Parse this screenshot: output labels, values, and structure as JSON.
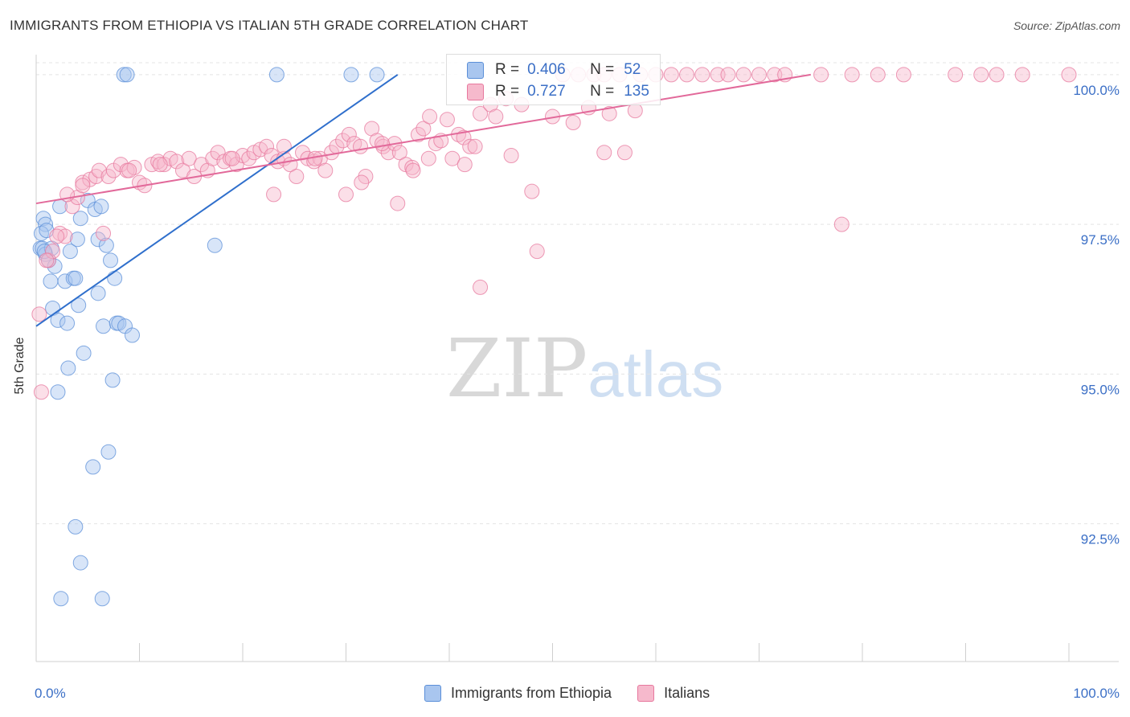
{
  "header": {
    "title": "IMMIGRANTS FROM ETHIOPIA VS ITALIAN 5TH GRADE CORRELATION CHART",
    "source": "Source: ZipAtlas.com"
  },
  "watermark": {
    "zip": "ZIP",
    "atlas": "atlas"
  },
  "legend": {
    "r_label": "R =",
    "n_label": "N =",
    "series": [
      {
        "name": "Immigrants from Ethiopia",
        "r": "0.406",
        "n": "52",
        "fill": "#a9c6ef",
        "stroke": "#5b8fd8"
      },
      {
        "name": "Italians",
        "r": "0.727",
        "n": "135",
        "fill": "#f6b9cc",
        "stroke": "#e7789e"
      }
    ]
  },
  "chart_data": {
    "type": "scatter",
    "title": "IMMIGRANTS FROM ETHIOPIA VS ITALIAN 5TH GRADE CORRELATION CHART",
    "xlabel": "",
    "ylabel": "5th Grade",
    "xlim": [
      0,
      100
    ],
    "ylim": [
      90.2,
      100.2
    ],
    "x_tick_labels": [
      "0.0%",
      "100.0%"
    ],
    "y_ticks": [
      92.5,
      95.0,
      97.5,
      100.0
    ],
    "y_tick_labels": [
      "92.5%",
      "95.0%",
      "97.5%",
      "100.0%"
    ],
    "grid": true,
    "legend_position": "top-center and bottom",
    "series": [
      {
        "name": "Immigrants from Ethiopia",
        "color": "#5b8fd8",
        "fill": "#a9c6ef",
        "trend": {
          "x": [
            0,
            35
          ],
          "y": [
            95.8,
            100.0
          ]
        },
        "points": [
          [
            8.5,
            100.0
          ],
          [
            8.8,
            100.0
          ],
          [
            23.3,
            100.0
          ],
          [
            30.5,
            100.0
          ],
          [
            33.0,
            100.0
          ],
          [
            0.7,
            97.6
          ],
          [
            0.9,
            97.5
          ],
          [
            0.5,
            97.35
          ],
          [
            0.4,
            97.1
          ],
          [
            0.6,
            97.1
          ],
          [
            0.9,
            97.0
          ],
          [
            1.2,
            96.9
          ],
          [
            1.5,
            97.1
          ],
          [
            1.8,
            96.8
          ],
          [
            1.4,
            96.55
          ],
          [
            2.3,
            97.8
          ],
          [
            2.8,
            96.55
          ],
          [
            3.3,
            97.05
          ],
          [
            3.6,
            96.6
          ],
          [
            4.0,
            97.25
          ],
          [
            4.3,
            97.6
          ],
          [
            5.0,
            97.9
          ],
          [
            5.7,
            97.75
          ],
          [
            6.3,
            97.8
          ],
          [
            6.0,
            97.25
          ],
          [
            6.8,
            97.15
          ],
          [
            7.2,
            96.9
          ],
          [
            7.6,
            96.6
          ],
          [
            3.8,
            96.6
          ],
          [
            6.0,
            96.35
          ],
          [
            4.1,
            96.15
          ],
          [
            1.6,
            96.1
          ],
          [
            2.1,
            95.9
          ],
          [
            3.0,
            95.85
          ],
          [
            6.5,
            95.8
          ],
          [
            7.8,
            95.85
          ],
          [
            8.0,
            95.85
          ],
          [
            8.6,
            95.8
          ],
          [
            9.3,
            95.65
          ],
          [
            4.6,
            95.35
          ],
          [
            3.1,
            95.1
          ],
          [
            7.4,
            94.9
          ],
          [
            2.1,
            94.7
          ],
          [
            7.0,
            93.7
          ],
          [
            5.5,
            93.45
          ],
          [
            3.8,
            92.45
          ],
          [
            4.3,
            91.85
          ],
          [
            2.4,
            91.25
          ],
          [
            6.4,
            91.25
          ],
          [
            17.3,
            97.15
          ],
          [
            1.0,
            97.4
          ],
          [
            0.8,
            97.05
          ]
        ]
      },
      {
        "name": "Italians",
        "color": "#e7789e",
        "fill": "#f6b9cc",
        "trend": {
          "x": [
            0,
            75
          ],
          "y": [
            97.85,
            100.0
          ]
        },
        "points": [
          [
            0.3,
            96.0
          ],
          [
            0.5,
            94.7
          ],
          [
            1.2,
            96.9
          ],
          [
            1.6,
            97.05
          ],
          [
            2.3,
            97.35
          ],
          [
            2.8,
            97.3
          ],
          [
            3.5,
            97.8
          ],
          [
            4.0,
            97.95
          ],
          [
            4.5,
            98.2
          ],
          [
            5.2,
            98.25
          ],
          [
            5.8,
            98.3
          ],
          [
            6.1,
            98.4
          ],
          [
            7.0,
            98.3
          ],
          [
            7.5,
            98.4
          ],
          [
            8.2,
            98.5
          ],
          [
            8.8,
            98.4
          ],
          [
            9.5,
            98.45
          ],
          [
            10.0,
            98.2
          ],
          [
            10.5,
            98.15
          ],
          [
            11.2,
            98.5
          ],
          [
            11.8,
            98.55
          ],
          [
            12.4,
            98.5
          ],
          [
            13.0,
            98.6
          ],
          [
            13.6,
            98.55
          ],
          [
            14.2,
            98.4
          ],
          [
            14.8,
            98.6
          ],
          [
            15.3,
            98.3
          ],
          [
            16.0,
            98.5
          ],
          [
            16.6,
            98.4
          ],
          [
            17.1,
            98.6
          ],
          [
            17.6,
            98.7
          ],
          [
            18.2,
            98.55
          ],
          [
            18.8,
            98.6
          ],
          [
            19.4,
            98.5
          ],
          [
            20.0,
            98.65
          ],
          [
            20.6,
            98.6
          ],
          [
            21.1,
            98.7
          ],
          [
            21.7,
            98.75
          ],
          [
            22.3,
            98.8
          ],
          [
            22.8,
            98.65
          ],
          [
            23.4,
            98.55
          ],
          [
            24.0,
            98.6
          ],
          [
            24.6,
            98.5
          ],
          [
            25.2,
            98.3
          ],
          [
            25.8,
            98.7
          ],
          [
            26.3,
            98.6
          ],
          [
            26.9,
            98.55
          ],
          [
            27.5,
            98.6
          ],
          [
            28.0,
            98.4
          ],
          [
            28.6,
            98.7
          ],
          [
            29.1,
            98.8
          ],
          [
            29.7,
            98.9
          ],
          [
            30.3,
            99.0
          ],
          [
            30.8,
            98.85
          ],
          [
            31.4,
            98.8
          ],
          [
            31.9,
            98.3
          ],
          [
            32.5,
            99.1
          ],
          [
            33.0,
            98.9
          ],
          [
            33.6,
            98.8
          ],
          [
            34.1,
            98.7
          ],
          [
            34.7,
            98.85
          ],
          [
            35.2,
            98.7
          ],
          [
            35.8,
            98.5
          ],
          [
            36.4,
            98.45
          ],
          [
            37.0,
            99.0
          ],
          [
            37.5,
            99.1
          ],
          [
            38.1,
            99.3
          ],
          [
            38.7,
            98.85
          ],
          [
            39.2,
            98.9
          ],
          [
            39.8,
            99.25
          ],
          [
            40.3,
            98.6
          ],
          [
            40.9,
            99.0
          ],
          [
            41.4,
            98.95
          ],
          [
            42.0,
            98.8
          ],
          [
            43.0,
            99.35
          ],
          [
            44.0,
            99.5
          ],
          [
            45.5,
            99.6
          ],
          [
            48.0,
            98.05
          ],
          [
            50.0,
            99.3
          ],
          [
            52.0,
            99.2
          ],
          [
            53.5,
            99.45
          ],
          [
            55.5,
            99.35
          ],
          [
            57.0,
            98.7
          ],
          [
            58.0,
            99.4
          ],
          [
            23.0,
            98.0
          ],
          [
            30.0,
            98.0
          ],
          [
            31.5,
            98.2
          ],
          [
            35.0,
            97.85
          ],
          [
            36.5,
            98.4
          ],
          [
            41.5,
            98.5
          ],
          [
            46.0,
            98.65
          ],
          [
            48.5,
            97.05
          ],
          [
            51.0,
            100.0
          ],
          [
            52.5,
            100.0
          ],
          [
            54.0,
            100.0
          ],
          [
            55.0,
            100.0
          ],
          [
            56.5,
            100.0
          ],
          [
            58.5,
            100.0
          ],
          [
            60.0,
            100.0
          ],
          [
            61.5,
            100.0
          ],
          [
            63.0,
            100.0
          ],
          [
            64.5,
            100.0
          ],
          [
            66.0,
            100.0
          ],
          [
            67.0,
            100.0
          ],
          [
            68.5,
            100.0
          ],
          [
            70.0,
            100.0
          ],
          [
            71.5,
            100.0
          ],
          [
            72.5,
            100.0
          ],
          [
            76.0,
            100.0
          ],
          [
            79.0,
            100.0
          ],
          [
            81.5,
            100.0
          ],
          [
            84.0,
            100.0
          ],
          [
            89.0,
            100.0
          ],
          [
            91.5,
            100.0
          ],
          [
            93.0,
            100.0
          ],
          [
            95.5,
            100.0
          ],
          [
            100.0,
            100.0
          ],
          [
            43.0,
            96.45
          ],
          [
            78.0,
            97.5
          ],
          [
            55.0,
            98.7
          ],
          [
            3.0,
            98.0
          ],
          [
            2.0,
            97.3
          ],
          [
            1.0,
            96.9
          ],
          [
            4.5,
            98.15
          ],
          [
            6.5,
            97.35
          ],
          [
            9.0,
            98.4
          ],
          [
            12.0,
            98.5
          ],
          [
            19.0,
            98.6
          ],
          [
            24.0,
            98.8
          ],
          [
            27.0,
            98.6
          ],
          [
            33.5,
            98.85
          ],
          [
            38.0,
            98.6
          ],
          [
            42.5,
            98.8
          ],
          [
            44.5,
            99.3
          ],
          [
            47.0,
            99.5
          ]
        ]
      }
    ]
  }
}
